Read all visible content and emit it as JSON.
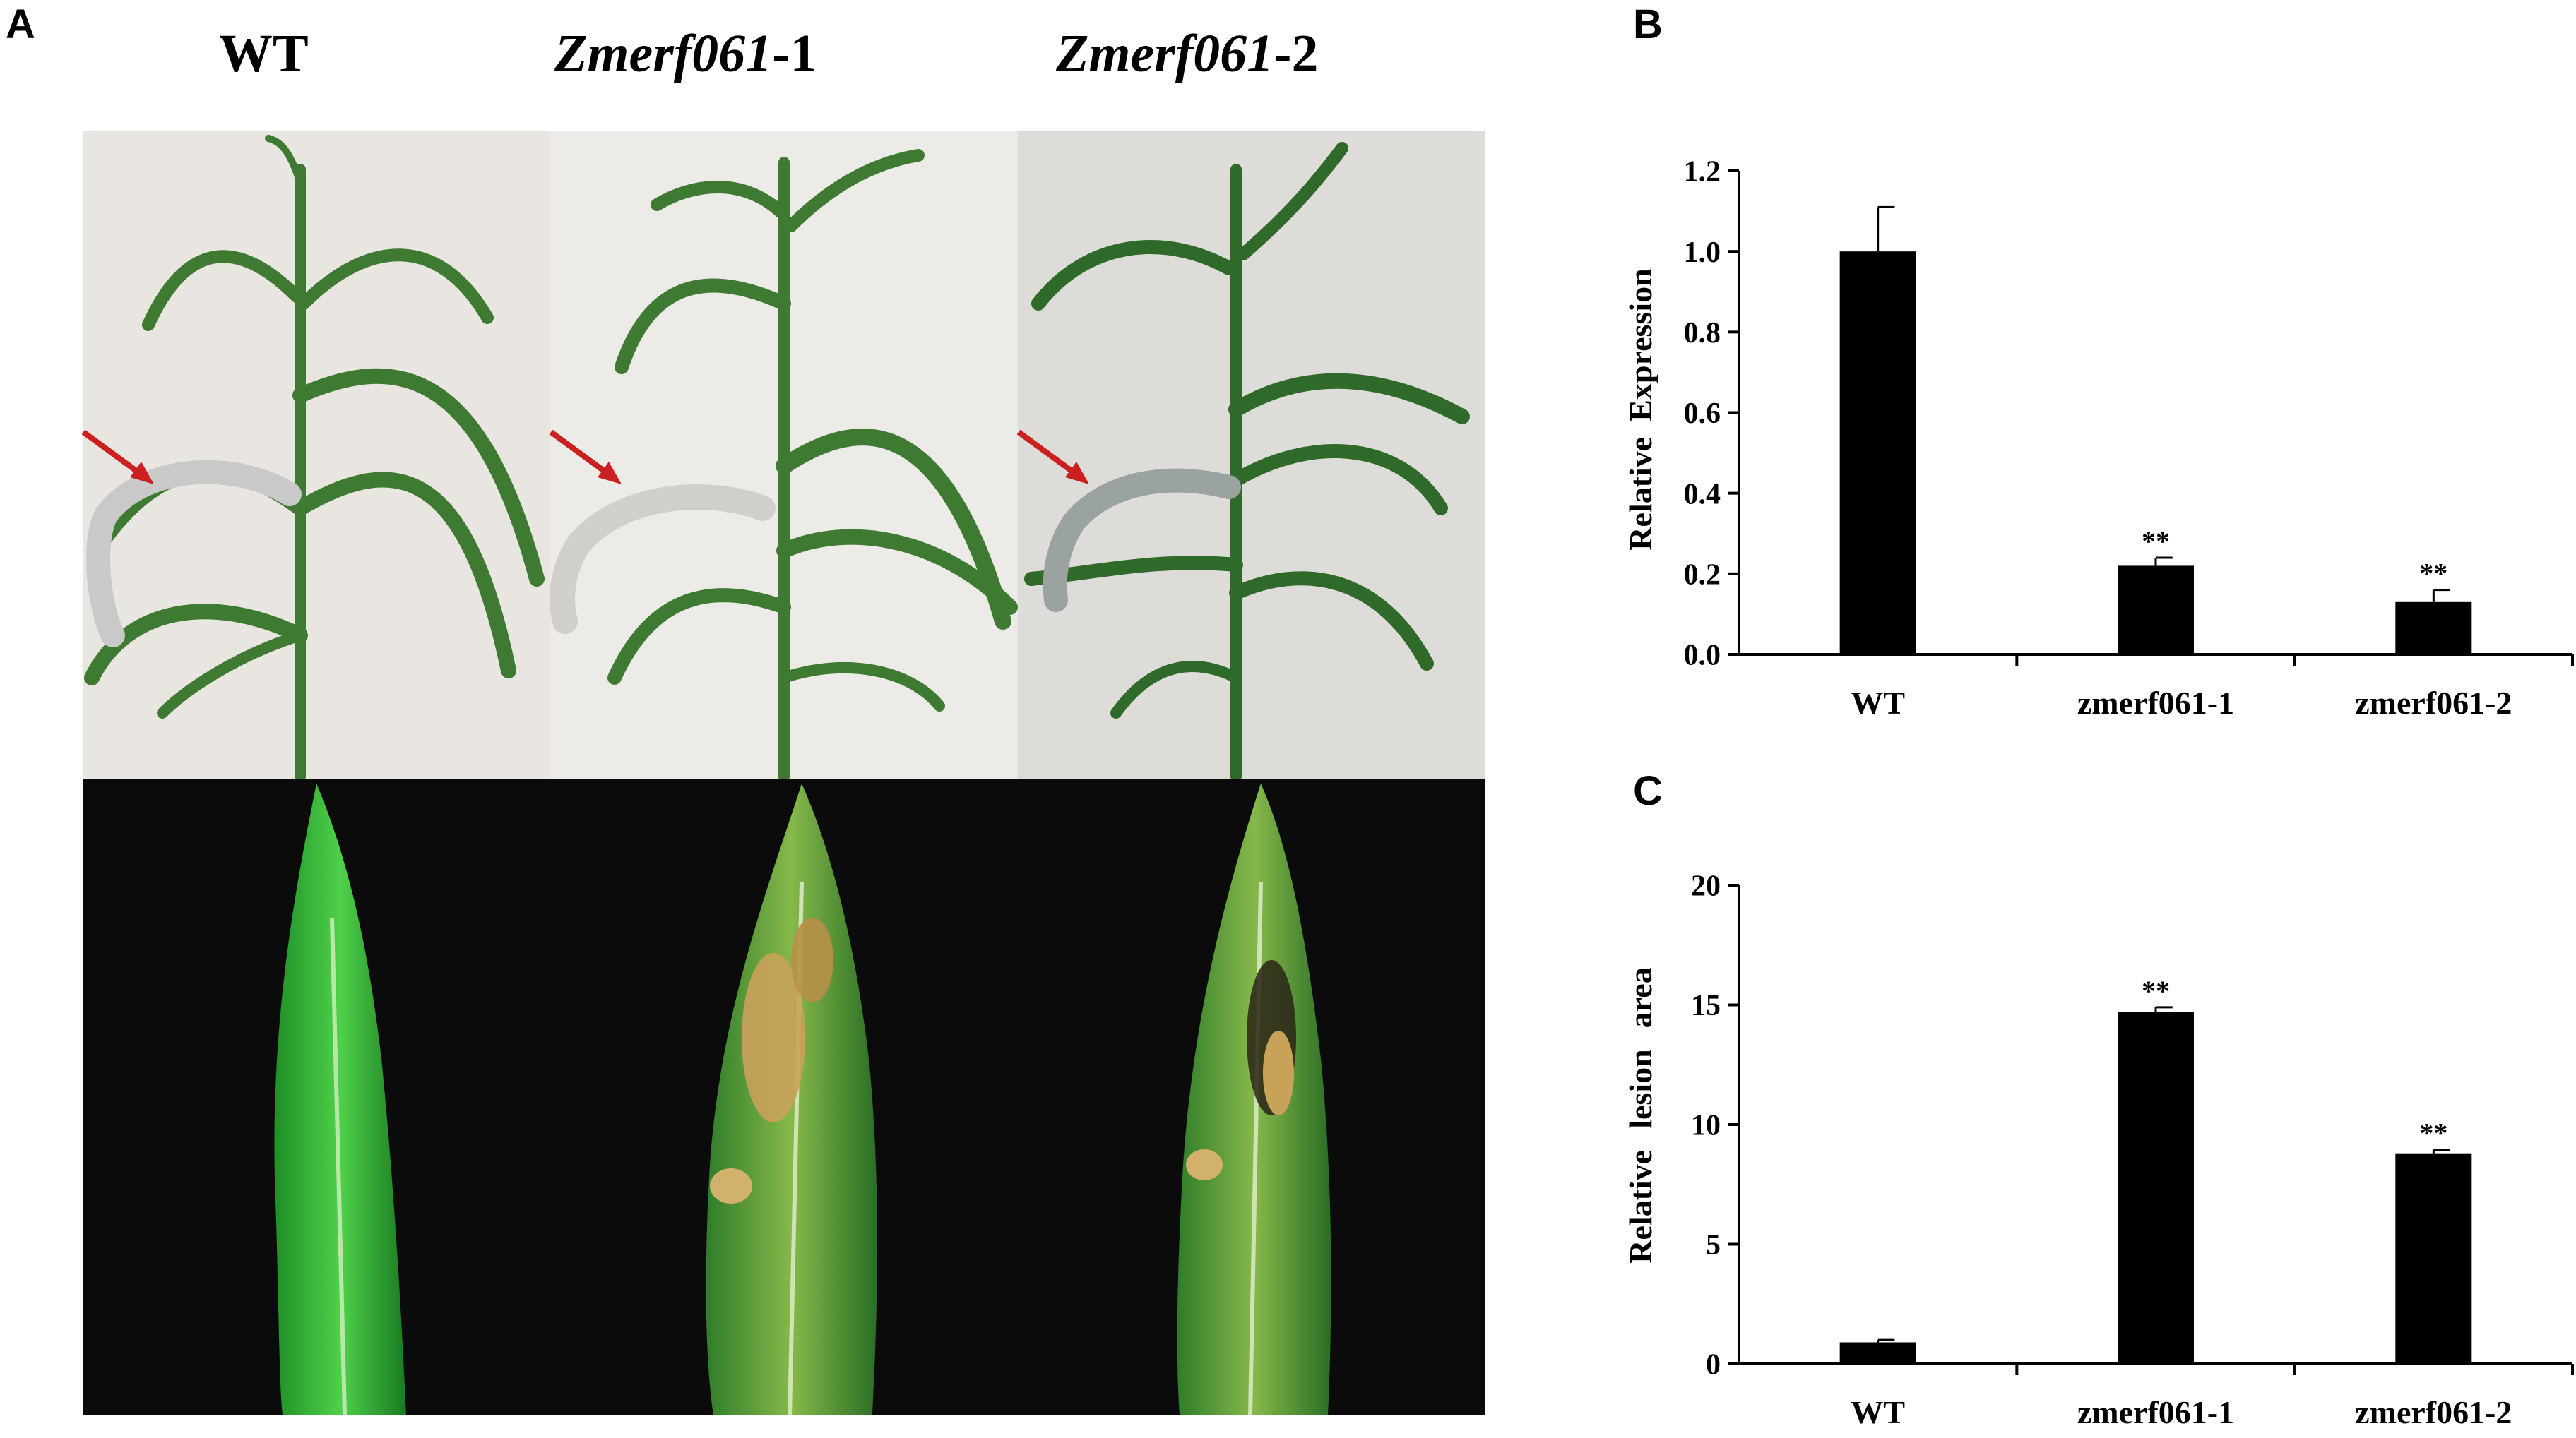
{
  "panels": {
    "a": "A",
    "b": "B",
    "c": "C"
  },
  "genotype_labels": [
    {
      "italic_part": "",
      "plain_part": "WT"
    },
    {
      "italic_part": "Zmerf061",
      "plain_part": "-1"
    },
    {
      "italic_part": "Zmerf061",
      "plain_part": "-2"
    }
  ],
  "photo_colors": {
    "plant_background": "#e9e6e1",
    "leaf_green": "#3f7a32",
    "dark_background": "#0b0b0b",
    "bright_leaf": "#35b030",
    "lesion": "#c9a25a",
    "arrow": "#cc1f1f"
  },
  "chart_data": [
    {
      "type": "bar",
      "categories": [
        "WT",
        "zmerf061-1",
        "zmerf061-2"
      ],
      "values": [
        1.0,
        0.22,
        0.13
      ],
      "errors": [
        0.11,
        0.02,
        0.03
      ],
      "annotations": [
        "",
        "**",
        "**"
      ],
      "ylabel_words": [
        "Relative",
        "Expression"
      ],
      "yticks": [
        "0.0",
        "0.2",
        "0.4",
        "0.6",
        "0.8",
        "1.0",
        "1.2"
      ],
      "ylim": [
        0,
        1.2
      ],
      "bar_color": "#000000",
      "grid": false
    },
    {
      "type": "bar",
      "categories": [
        "WT",
        "zmerf061-1",
        "zmerf061-2"
      ],
      "values": [
        0.9,
        14.7,
        8.8
      ],
      "errors": [
        0.1,
        0.2,
        0.15
      ],
      "annotations": [
        "",
        "**",
        "**"
      ],
      "ylabel_words": [
        "Relative",
        "lesion",
        "area"
      ],
      "yticks": [
        "0",
        "5",
        "10",
        "15",
        "20"
      ],
      "ylim": [
        0,
        20
      ],
      "bar_color": "#000000",
      "grid": false
    }
  ]
}
